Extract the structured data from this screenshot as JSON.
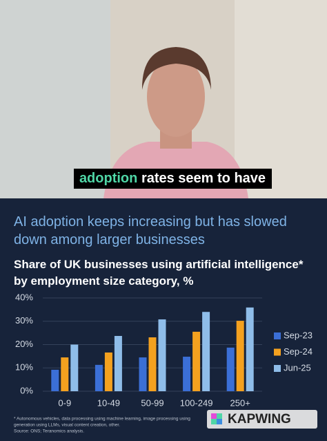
{
  "video": {
    "caption_highlight": "adoption",
    "caption_rest": "rates seem to have"
  },
  "chart_data": {
    "type": "bar",
    "title": "AI adoption keeps increasing but has slowed down among larger businesses",
    "subtitle": "Share of UK businesses using artificial intelligence* by employment size category, %",
    "categories": [
      "0-9",
      "10-49",
      "50-99",
      "100-249",
      "250+"
    ],
    "series": [
      {
        "name": "Sep-23",
        "color": "#3b6fd6",
        "values": [
          9.2,
          11.3,
          14.5,
          14.8,
          18.7
        ]
      },
      {
        "name": "Sep-24",
        "color": "#f4a11f",
        "values": [
          14.5,
          16.6,
          23.1,
          25.5,
          30.2
        ]
      },
      {
        "name": "Jun-25",
        "color": "#8fbde9",
        "values": [
          20,
          23.7,
          30.8,
          34,
          35.9
        ]
      }
    ],
    "ylim": [
      0,
      40
    ],
    "yticks": [
      {
        "value": 0,
        "label": "0%"
      },
      {
        "value": 10,
        "label": "10%"
      },
      {
        "value": 20,
        "label": "20%"
      },
      {
        "value": 30,
        "label": "30%"
      },
      {
        "value": 40,
        "label": "40%"
      }
    ],
    "grid": true,
    "legend": "right",
    "footnote": [
      "* Autonomous vehicles, data processing using machine learning, image processing using",
      "generation using LLMs, visual content creation, other.",
      "Source: ONS; Teranomics analysis."
    ]
  },
  "watermark": "KAPWING"
}
